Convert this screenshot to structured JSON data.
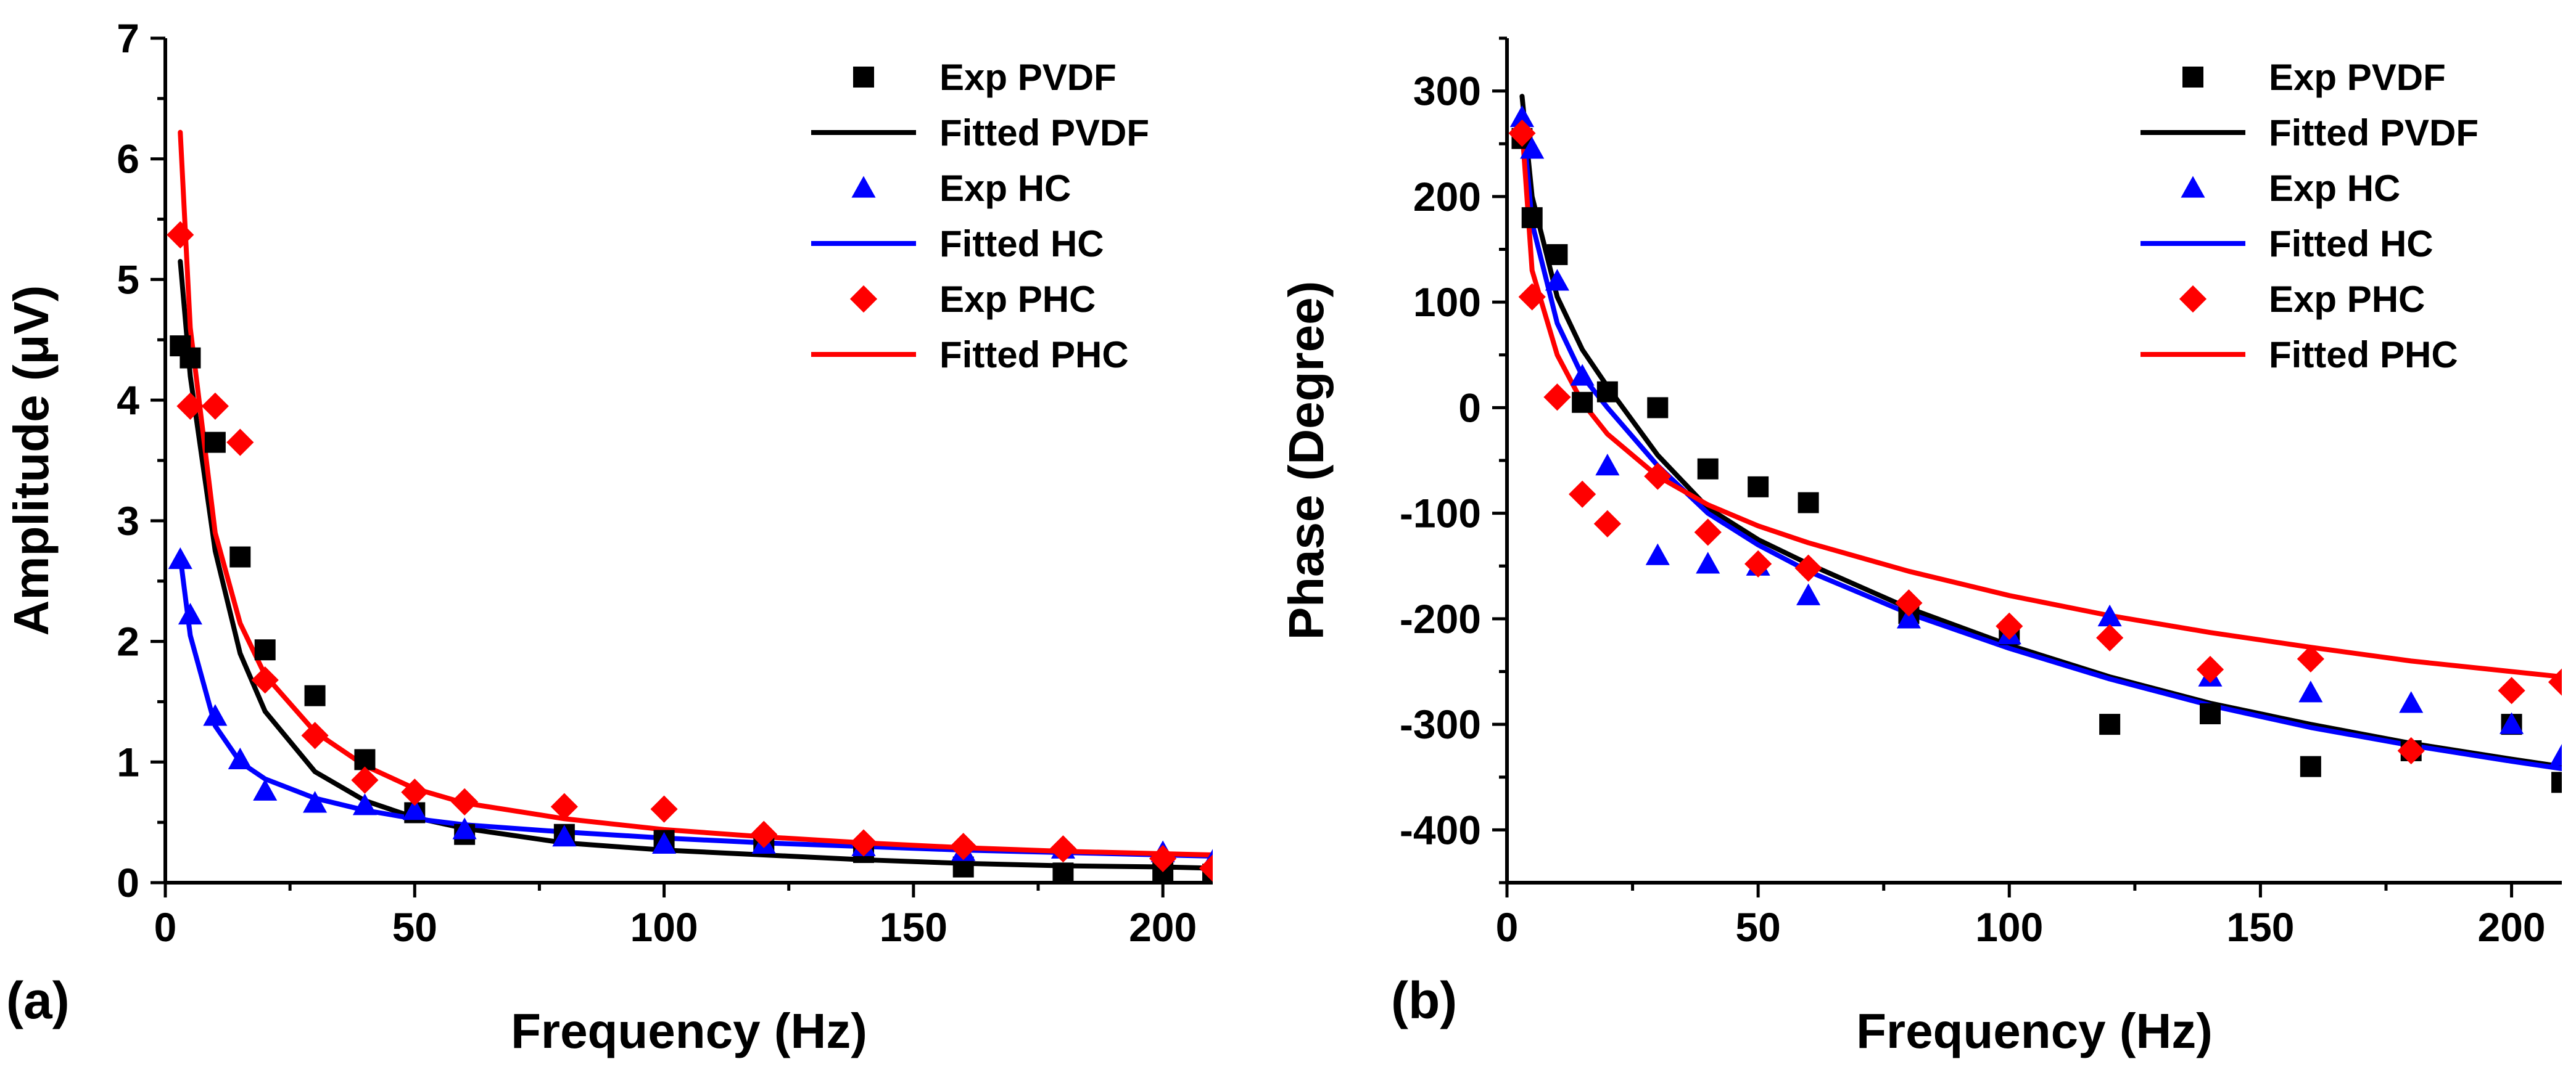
{
  "chart_data": [
    {
      "type": "scatter",
      "panel_label": "(a)",
      "xlabel": "Frequency (Hz)",
      "ylabel": "Amplitude (μV)",
      "xlim": [
        0,
        210
      ],
      "ylim": [
        0,
        7
      ],
      "xticks": [
        0,
        50,
        100,
        150,
        200
      ],
      "yticks": [
        0,
        1,
        2,
        3,
        4,
        5,
        6,
        7
      ],
      "legend_position": "top-right",
      "series": [
        {
          "name": "Exp PVDF",
          "kind": "markers",
          "marker": "square",
          "color": "#000000",
          "x": [
            3,
            5,
            10,
            15,
            20,
            30,
            40,
            50,
            60,
            80,
            100,
            120,
            140,
            160,
            180,
            200,
            210
          ],
          "y": [
            4.45,
            4.35,
            3.65,
            2.7,
            1.93,
            1.55,
            1.02,
            0.58,
            0.4,
            0.4,
            0.35,
            0.32,
            0.25,
            0.13,
            0.08,
            0.1,
            0.07
          ]
        },
        {
          "name": "Fitted PVDF",
          "kind": "line",
          "color": "#000000",
          "x": [
            3,
            5,
            10,
            15,
            20,
            30,
            40,
            50,
            60,
            80,
            100,
            120,
            140,
            160,
            180,
            200,
            210
          ],
          "y": [
            5.15,
            4.2,
            2.75,
            1.9,
            1.42,
            0.92,
            0.68,
            0.54,
            0.45,
            0.33,
            0.27,
            0.23,
            0.19,
            0.16,
            0.14,
            0.13,
            0.12
          ]
        },
        {
          "name": "Exp HC",
          "kind": "markers",
          "marker": "triangle",
          "color": "#0000FF",
          "x": [
            3,
            5,
            10,
            15,
            20,
            30,
            40,
            50,
            60,
            80,
            100,
            120,
            140,
            160,
            180,
            200,
            210
          ],
          "y": [
            2.68,
            2.22,
            1.38,
            1.02,
            0.76,
            0.66,
            0.64,
            0.6,
            0.44,
            0.38,
            0.32,
            0.32,
            0.3,
            0.26,
            0.28,
            0.25,
            0.18
          ]
        },
        {
          "name": "Fitted HC",
          "kind": "line",
          "color": "#0000FF",
          "x": [
            3,
            5,
            10,
            15,
            20,
            30,
            40,
            50,
            60,
            80,
            100,
            120,
            140,
            160,
            180,
            200,
            210
          ],
          "y": [
            2.7,
            2.05,
            1.3,
            1.0,
            0.86,
            0.7,
            0.6,
            0.53,
            0.48,
            0.42,
            0.37,
            0.33,
            0.3,
            0.27,
            0.25,
            0.23,
            0.22
          ]
        },
        {
          "name": "Exp PHC",
          "kind": "markers",
          "marker": "diamond",
          "color": "#FF0000",
          "x": [
            3,
            5,
            10,
            15,
            20,
            30,
            40,
            50,
            60,
            80,
            100,
            120,
            140,
            160,
            180,
            200,
            210
          ],
          "y": [
            5.37,
            3.95,
            3.95,
            3.65,
            1.68,
            1.22,
            0.85,
            0.75,
            0.67,
            0.63,
            0.61,
            0.4,
            0.33,
            0.3,
            0.28,
            0.2,
            0.12
          ]
        },
        {
          "name": "Fitted PHC",
          "kind": "line",
          "color": "#FF0000",
          "x": [
            3,
            5,
            10,
            15,
            20,
            30,
            40,
            50,
            60,
            80,
            100,
            120,
            140,
            160,
            180,
            200,
            210
          ],
          "y": [
            6.22,
            4.6,
            2.9,
            2.15,
            1.72,
            1.25,
            0.97,
            0.78,
            0.66,
            0.53,
            0.44,
            0.38,
            0.33,
            0.29,
            0.26,
            0.24,
            0.23
          ]
        }
      ]
    },
    {
      "type": "scatter",
      "panel_label": "(b)",
      "xlabel": "Frequency (Hz)",
      "ylabel": "Phase (Degree)",
      "xlim": [
        0,
        210
      ],
      "ylim": [
        -450,
        350
      ],
      "xticks": [
        0,
        50,
        100,
        150,
        200
      ],
      "yticks": [
        -400,
        -300,
        -200,
        -100,
        0,
        100,
        200,
        300
      ],
      "legend_position": "top-right",
      "series": [
        {
          "name": "Exp PVDF",
          "kind": "markers",
          "marker": "square",
          "color": "#000000",
          "x": [
            3,
            5,
            10,
            15,
            20,
            30,
            40,
            50,
            60,
            80,
            100,
            120,
            140,
            160,
            180,
            200,
            210
          ],
          "y": [
            255,
            180,
            145,
            5,
            15,
            0,
            -58,
            -75,
            -90,
            -195,
            -215,
            -300,
            -290,
            -340,
            -325,
            -300,
            -355
          ]
        },
        {
          "name": "Fitted PVDF",
          "kind": "line",
          "color": "#000000",
          "x": [
            3,
            5,
            10,
            15,
            20,
            30,
            40,
            50,
            60,
            80,
            100,
            120,
            140,
            160,
            180,
            200,
            210
          ],
          "y": [
            295,
            200,
            105,
            55,
            20,
            -45,
            -95,
            -125,
            -148,
            -190,
            -225,
            -255,
            -280,
            -300,
            -318,
            -333,
            -340
          ]
        },
        {
          "name": "Exp HC",
          "kind": "markers",
          "marker": "triangle",
          "color": "#0000FF",
          "x": [
            3,
            5,
            10,
            15,
            20,
            30,
            40,
            50,
            60,
            80,
            100,
            120,
            140,
            160,
            180,
            200,
            210
          ],
          "y": [
            275,
            245,
            120,
            30,
            -55,
            -140,
            -148,
            -150,
            -178,
            -200,
            -215,
            -198,
            -255,
            -270,
            -280,
            -300,
            -330
          ]
        },
        {
          "name": "Fitted HC",
          "kind": "line",
          "color": "#0000FF",
          "x": [
            3,
            5,
            10,
            15,
            20,
            30,
            40,
            50,
            60,
            80,
            100,
            120,
            140,
            160,
            180,
            200,
            210
          ],
          "y": [
            280,
            175,
            80,
            30,
            0,
            -55,
            -100,
            -130,
            -155,
            -195,
            -228,
            -257,
            -282,
            -303,
            -320,
            -335,
            -342
          ]
        },
        {
          "name": "Exp PHC",
          "kind": "markers",
          "marker": "diamond",
          "color": "#FF0000",
          "x": [
            3,
            5,
            10,
            15,
            20,
            30,
            40,
            50,
            60,
            80,
            100,
            120,
            140,
            160,
            180,
            200,
            210
          ],
          "y": [
            260,
            105,
            10,
            -82,
            -110,
            -65,
            -118,
            -148,
            -152,
            -185,
            -207,
            -218,
            -248,
            -238,
            -325,
            -268,
            -260
          ]
        },
        {
          "name": "Fitted PHC",
          "kind": "line",
          "color": "#FF0000",
          "x": [
            3,
            5,
            10,
            15,
            20,
            30,
            40,
            50,
            60,
            80,
            100,
            120,
            140,
            160,
            180,
            200,
            210
          ],
          "y": [
            265,
            130,
            50,
            5,
            -25,
            -65,
            -92,
            -112,
            -128,
            -155,
            -178,
            -197,
            -213,
            -227,
            -240,
            -250,
            -255
          ]
        }
      ]
    }
  ]
}
